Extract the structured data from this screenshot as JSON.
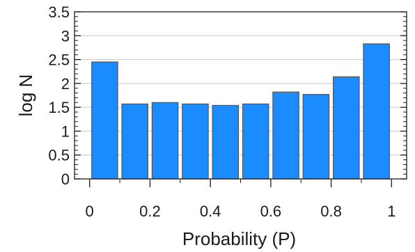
{
  "chart_data": {
    "type": "bar",
    "title": "",
    "xlabel": "Probability (P)",
    "ylabel": "log N",
    "x_bin_centers": [
      0.05,
      0.15,
      0.25,
      0.35,
      0.45,
      0.55,
      0.65,
      0.75,
      0.85,
      0.95
    ],
    "values": [
      2.45,
      1.57,
      1.6,
      1.57,
      1.54,
      1.57,
      1.82,
      1.77,
      2.14,
      2.83
    ],
    "xlim": [
      -0.05,
      1.05
    ],
    "ylim": [
      0,
      3.5
    ],
    "x_ticks": [
      0,
      0.2,
      0.4,
      0.6,
      0.8,
      1
    ],
    "x_tick_labels": [
      "0",
      "0.2",
      "0.4",
      "0.6",
      "0.8",
      "1"
    ],
    "y_ticks": [
      0,
      0.5,
      1,
      1.5,
      2,
      2.5,
      3,
      3.5
    ],
    "y_tick_labels": [
      "0",
      "0.5",
      "1",
      "1.5",
      "2",
      "2.5",
      "3",
      "3.5"
    ],
    "grid": "horizontal",
    "legend": "none",
    "colors": {
      "bar_fill": "#1a8cff",
      "bar_stroke": "#555555",
      "grid": "#c8c8c8",
      "axis": "#1a1a1a"
    }
  }
}
